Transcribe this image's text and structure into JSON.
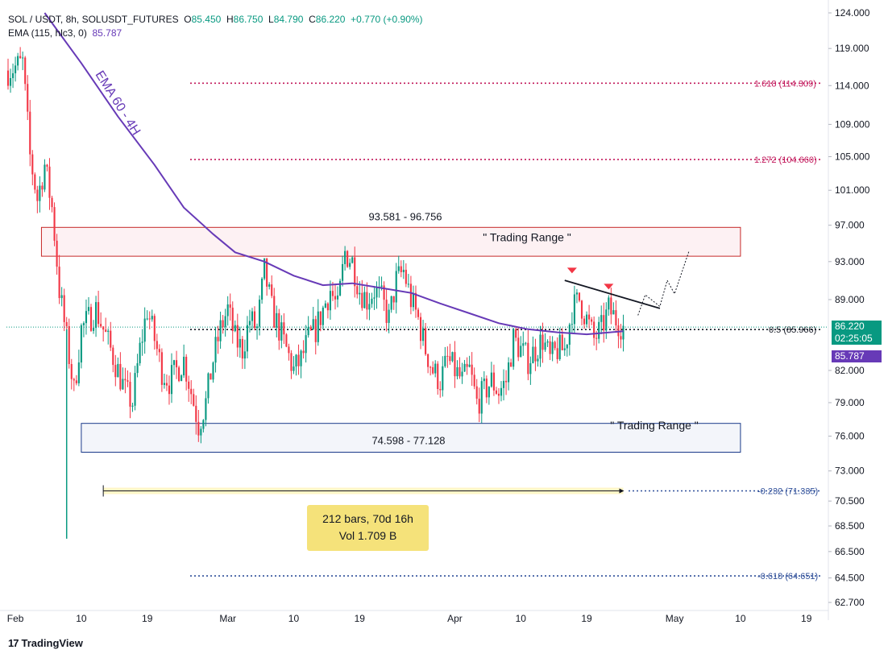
{
  "legend": {
    "symbol": "SOL / USDT, 8h, SOLUSDT_FUTURES",
    "ohlc": {
      "o_label": "O",
      "o": "85.450",
      "h_label": "H",
      "h": "86.750",
      "l_label": "L",
      "l": "84.790",
      "c_label": "C",
      "c": "86.220",
      "change": "+0.770 (+0.90%)"
    },
    "ema": {
      "label": "EMA (115, hlc3, 0)",
      "value": "85.787"
    }
  },
  "chart_data": {
    "type": "candlestick",
    "y_scale": "log",
    "ylim": [
      61.5,
      126.5
    ],
    "price_ticks": [
      "124.000",
      "119.000",
      "114.000",
      "109.000",
      "105.000",
      "101.000",
      "97.000",
      "93.000",
      "89.000",
      "82.000",
      "79.000",
      "76.000",
      "73.000",
      "70.500",
      "68.500",
      "66.500",
      "64.500",
      "62.700"
    ],
    "x_ticks": [
      "Feb",
      "10",
      "19",
      "Mar",
      "10",
      "19",
      "Apr",
      "10",
      "19",
      "May",
      "10",
      "19"
    ],
    "x_tick_dates": [
      "2024-02-01",
      "2024-02-10",
      "2024-02-19",
      "2024-03-01",
      "2024-03-10",
      "2024-03-19",
      "2024-04-01",
      "2024-04-10",
      "2024-04-19",
      "2024-05-01",
      "2024-05-10",
      "2024-05-19"
    ],
    "price_path": [
      [
        "2024-01-31",
        116
      ],
      [
        "2024-02-02",
        117
      ],
      [
        "2024-02-03",
        105
      ],
      [
        "2024-02-04",
        100
      ],
      [
        "2024-02-05",
        104
      ],
      [
        "2024-02-06",
        99
      ],
      [
        "2024-02-07",
        90
      ],
      [
        "2024-02-08",
        85
      ],
      [
        "2024-02-09",
        80
      ],
      [
        "2024-02-10",
        86
      ],
      [
        "2024-02-12",
        88
      ],
      [
        "2024-02-13",
        86
      ],
      [
        "2024-02-14",
        84
      ],
      [
        "2024-02-15",
        82
      ],
      [
        "2024-02-16",
        80
      ],
      [
        "2024-02-17",
        79
      ],
      [
        "2024-02-18",
        84
      ],
      [
        "2024-02-19",
        88
      ],
      [
        "2024-02-20",
        85
      ],
      [
        "2024-02-21",
        82
      ],
      [
        "2024-02-22",
        81
      ],
      [
        "2024-02-24",
        83
      ],
      [
        "2024-02-25",
        80
      ],
      [
        "2024-02-26",
        77
      ],
      [
        "2024-02-27",
        79
      ],
      [
        "2024-02-28",
        83
      ],
      [
        "2024-02-29",
        86
      ],
      [
        "2024-03-01",
        88
      ],
      [
        "2024-03-02",
        85
      ],
      [
        "2024-03-03",
        84
      ],
      [
        "2024-03-04",
        87
      ],
      [
        "2024-03-05",
        86
      ],
      [
        "2024-03-06",
        92
      ],
      [
        "2024-03-07",
        88
      ],
      [
        "2024-03-08",
        86
      ],
      [
        "2024-03-09",
        84
      ],
      [
        "2024-03-10",
        82
      ],
      [
        "2024-03-11",
        83
      ],
      [
        "2024-03-12",
        85
      ],
      [
        "2024-03-13",
        86
      ],
      [
        "2024-03-14",
        88
      ],
      [
        "2024-03-15",
        90
      ],
      [
        "2024-03-16",
        88
      ],
      [
        "2024-03-17",
        94
      ],
      [
        "2024-03-18",
        93
      ],
      [
        "2024-03-19",
        90
      ],
      [
        "2024-03-20",
        89
      ],
      [
        "2024-03-21",
        90
      ],
      [
        "2024-03-22",
        89
      ],
      [
        "2024-03-23",
        87
      ],
      [
        "2024-03-24",
        91
      ],
      [
        "2024-03-25",
        92
      ],
      [
        "2024-03-26",
        89
      ],
      [
        "2024-03-27",
        87
      ],
      [
        "2024-03-28",
        84
      ],
      [
        "2024-03-29",
        82
      ],
      [
        "2024-03-30",
        81
      ],
      [
        "2024-03-31",
        83
      ],
      [
        "2024-04-01",
        82
      ],
      [
        "2024-04-02",
        81
      ],
      [
        "2024-04-03",
        82
      ],
      [
        "2024-04-04",
        79
      ],
      [
        "2024-04-05",
        80
      ],
      [
        "2024-04-06",
        81
      ],
      [
        "2024-04-07",
        80
      ],
      [
        "2024-04-08",
        81
      ],
      [
        "2024-04-09",
        85
      ],
      [
        "2024-04-10",
        84
      ],
      [
        "2024-04-11",
        83
      ],
      [
        "2024-04-12",
        84
      ],
      [
        "2024-04-13",
        85
      ],
      [
        "2024-04-14",
        83
      ],
      [
        "2024-04-15",
        84
      ],
      [
        "2024-04-16",
        84
      ],
      [
        "2024-04-17",
        88
      ],
      [
        "2024-04-18",
        89
      ],
      [
        "2024-04-19",
        87
      ],
      [
        "2024-04-20",
        85
      ],
      [
        "2024-04-21",
        86
      ],
      [
        "2024-04-22",
        88
      ],
      [
        "2024-04-23",
        87
      ],
      [
        "2024-04-24",
        86.2
      ]
    ],
    "ema_path": [
      [
        "2024-02-05",
        124
      ],
      [
        "2024-02-10",
        117
      ],
      [
        "2024-02-15",
        110
      ],
      [
        "2024-02-20",
        104
      ],
      [
        "2024-02-24",
        99
      ],
      [
        "2024-02-28",
        96
      ],
      [
        "2024-03-02",
        94
      ],
      [
        "2024-03-06",
        93
      ],
      [
        "2024-03-10",
        91.5
      ],
      [
        "2024-03-14",
        90.5
      ],
      [
        "2024-03-18",
        90.7
      ],
      [
        "2024-03-22",
        90.2
      ],
      [
        "2024-03-26",
        89.7
      ],
      [
        "2024-03-30",
        88.6
      ],
      [
        "2024-04-03",
        87.6
      ],
      [
        "2024-04-07",
        86.6
      ],
      [
        "2024-04-11",
        86.0
      ],
      [
        "2024-04-15",
        85.7
      ],
      [
        "2024-04-19",
        85.5
      ],
      [
        "2024-04-24",
        85.8
      ]
    ],
    "annotations": {
      "ema_label": "EMA 60 - 4H",
      "upper_range": {
        "low": 93.581,
        "high": 96.756,
        "label": "93.581 - 96.756",
        "caption": "\" Trading Range \"",
        "from": "2024-02-05",
        "to": "2024-05-10"
      },
      "lower_range": {
        "low": 74.598,
        "high": 77.128,
        "label": "74.598 - 77.128",
        "caption": "\" Trading Range \"",
        "from": "2024-02-10",
        "to": "2024-05-10"
      },
      "fib_levels": [
        {
          "ratio_label": "1.618 (114.309)",
          "value": 114.309,
          "color": "#c2185b"
        },
        {
          "ratio_label": "1.272 (104.660)",
          "value": 104.66,
          "color": "#c2185b"
        },
        {
          "ratio_label": "0.5 (85.966)",
          "value": 85.966,
          "color": "#131722"
        },
        {
          "ratio_label": "-0.232 (71.335)",
          "value": 71.335,
          "color": "#2f4f99"
        },
        {
          "ratio_label": "-0.618 (64.651)",
          "value": 64.651,
          "color": "#2f4f99"
        }
      ],
      "measure": {
        "from": "2024-02-13",
        "to": "2024-04-24",
        "line1": "212 bars, 70d 16h",
        "line2": "Vol 1.709 B"
      },
      "trendline": [
        [
          "2024-04-16",
          91.0
        ],
        [
          "2024-04-29",
          88.1
        ]
      ],
      "projection": [
        [
          "2024-04-26",
          87.4
        ],
        [
          "2024-04-27",
          89.5
        ],
        [
          "2024-04-29",
          88.3
        ],
        [
          "2024-04-30",
          91.0
        ],
        [
          "2024-05-01",
          89.6
        ],
        [
          "2024-05-03",
          94.2
        ]
      ]
    },
    "current_price": "86.220",
    "countdown": "02:25:05",
    "ema_current": "85.787",
    "colors": {
      "up": "#089981",
      "down": "#f23645",
      "ema": "#673ab7",
      "upper_range": "#c62828",
      "lower_range": "#1a3a8a"
    }
  },
  "footer": {
    "brand": "TradingView"
  }
}
